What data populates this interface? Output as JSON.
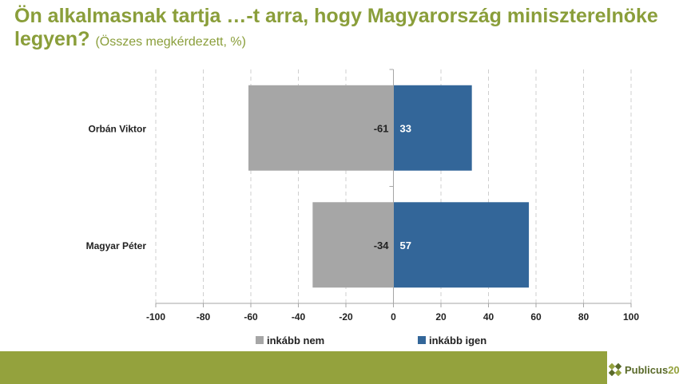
{
  "title": {
    "main": "Ön alkalmasnak tartja …-t arra, hogy Magyarország miniszterelnöke legyen?",
    "subtitle": "(Összes megkérdezett, %)"
  },
  "colors": {
    "title": "#8a9e3a",
    "negative": "#a6a6a6",
    "positive": "#336699",
    "footer": "#94a23d"
  },
  "chart_data": {
    "type": "bar",
    "orientation": "horizontal",
    "stacked": "diverging",
    "categories": [
      "Orbán Viktor",
      "Magyar Péter"
    ],
    "series": [
      {
        "name": "inkább nem",
        "values": [
          -61,
          -34
        ]
      },
      {
        "name": "inkább igen",
        "values": [
          33,
          57
        ]
      }
    ],
    "xlim": [
      -100,
      100
    ],
    "xticks": [
      "-100",
      "-80",
      "-60",
      "-40",
      "-20",
      "0",
      "20",
      "40",
      "60",
      "80",
      "100"
    ],
    "grid": "vertical-dashed",
    "legend_position": "bottom"
  },
  "logo": {
    "text": "Publicus",
    "number": "20"
  }
}
